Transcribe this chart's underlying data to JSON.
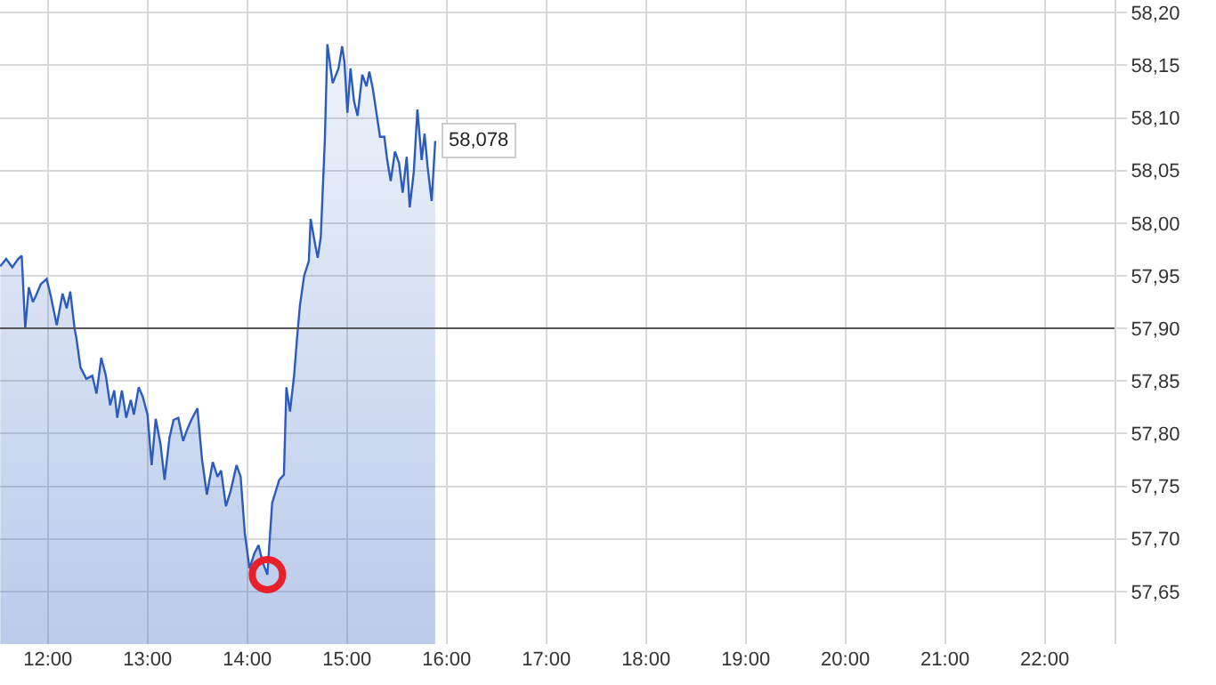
{
  "chart_data": {
    "type": "area",
    "x": [
      11.523,
      11.582,
      11.643,
      11.702,
      11.738,
      11.773,
      11.809,
      11.85,
      11.88,
      11.929,
      11.988,
      12.029,
      12.089,
      12.148,
      12.189,
      12.225,
      12.268,
      12.286,
      12.327,
      12.386,
      12.446,
      12.488,
      12.536,
      12.582,
      12.625,
      12.666,
      12.696,
      12.743,
      12.786,
      12.832,
      12.863,
      12.911,
      12.952,
      13.0,
      13.041,
      13.082,
      13.13,
      13.171,
      13.22,
      13.261,
      13.309,
      13.357,
      13.398,
      13.439,
      13.5,
      13.546,
      13.595,
      13.654,
      13.702,
      13.738,
      13.786,
      13.832,
      13.893,
      13.934,
      13.975,
      14.023,
      14.071,
      14.113,
      14.154,
      14.202,
      14.25,
      14.321,
      14.368,
      14.393,
      14.429,
      14.47,
      14.5,
      14.529,
      14.571,
      14.618,
      14.636,
      14.679,
      14.707,
      14.738,
      14.779,
      14.804,
      14.857,
      14.916,
      14.952,
      14.975,
      15.005,
      15.036,
      15.071,
      15.107,
      15.154,
      15.196,
      15.225,
      15.261,
      15.291,
      15.332,
      15.375,
      15.404,
      15.439,
      15.482,
      15.523,
      15.559,
      15.6,
      15.63,
      15.671,
      15.707,
      15.75,
      15.779,
      15.809,
      15.85,
      15.886
    ],
    "series": [
      {
        "color": "#2a5cbf",
        "values": [
          57.959,
          57.966,
          57.958,
          57.966,
          57.969,
          57.9,
          57.939,
          57.925,
          57.931,
          57.942,
          57.947,
          57.931,
          57.903,
          57.933,
          57.919,
          57.935,
          57.9,
          57.891,
          57.863,
          57.852,
          57.855,
          57.838,
          57.872,
          57.855,
          57.827,
          57.841,
          57.815,
          57.841,
          57.815,
          57.832,
          57.818,
          57.844,
          57.835,
          57.818,
          57.77,
          57.814,
          57.79,
          57.756,
          57.796,
          57.813,
          57.815,
          57.793,
          57.804,
          57.813,
          57.824,
          57.776,
          57.742,
          57.773,
          57.759,
          57.765,
          57.731,
          57.745,
          57.77,
          57.759,
          57.706,
          57.672,
          57.686,
          57.694,
          57.678,
          57.666,
          57.734,
          57.756,
          57.761,
          57.844,
          57.821,
          57.855,
          57.891,
          57.922,
          57.95,
          57.964,
          58.004,
          57.981,
          57.967,
          57.987,
          58.08,
          58.17,
          58.133,
          58.147,
          58.168,
          58.153,
          58.105,
          58.147,
          58.116,
          58.102,
          58.141,
          58.13,
          58.144,
          58.127,
          58.108,
          58.082,
          58.082,
          58.06,
          58.04,
          58.068,
          58.057,
          58.029,
          58.063,
          58.015,
          58.049,
          58.108,
          58.06,
          58.085,
          58.054,
          58.021,
          58.078
        ]
      },
      {
        "type": "scatter",
        "color": "#e8202a",
        "marker": "circle",
        "x": [
          14.202
        ],
        "values": [
          57.666
        ]
      }
    ],
    "xlim": [
      11.52,
      22.7
    ],
    "xticks": [
      {
        "value": 12,
        "label": "12:00"
      },
      {
        "value": 13,
        "label": "13:00"
      },
      {
        "value": 14,
        "label": "14:00"
      },
      {
        "value": 15,
        "label": "15:00"
      },
      {
        "value": 16,
        "label": "16:00"
      },
      {
        "value": 17,
        "label": "17:00"
      },
      {
        "value": 18,
        "label": "18:00"
      },
      {
        "value": 19,
        "label": "19:00"
      },
      {
        "value": 20,
        "label": "20:00"
      },
      {
        "value": 21,
        "label": "21:00"
      },
      {
        "value": 22,
        "label": "22:00"
      }
    ],
    "ylim": [
      57.6,
      58.212
    ],
    "yticks": [
      {
        "value": 57.65,
        "label": "57,65"
      },
      {
        "value": 57.7,
        "label": "57,70"
      },
      {
        "value": 57.75,
        "label": "57,75"
      },
      {
        "value": 57.8,
        "label": "57,80"
      },
      {
        "value": 57.85,
        "label": "57,85"
      },
      {
        "value": 57.9,
        "label": "57,90"
      },
      {
        "value": 57.95,
        "label": "57,95"
      },
      {
        "value": 58.0,
        "label": "58,00"
      },
      {
        "value": 58.05,
        "label": "58,05"
      },
      {
        "value": 58.1,
        "label": "58,10"
      },
      {
        "value": 58.15,
        "label": "58,15"
      },
      {
        "value": 58.2,
        "label": "58,20"
      }
    ],
    "ref_lines": [
      {
        "axis": "y",
        "value": 57.9,
        "color": "#555555"
      }
    ],
    "annotations": [
      {
        "text": "58,078",
        "x": 15.886,
        "y": 58.078
      }
    ],
    "grid": true
  }
}
